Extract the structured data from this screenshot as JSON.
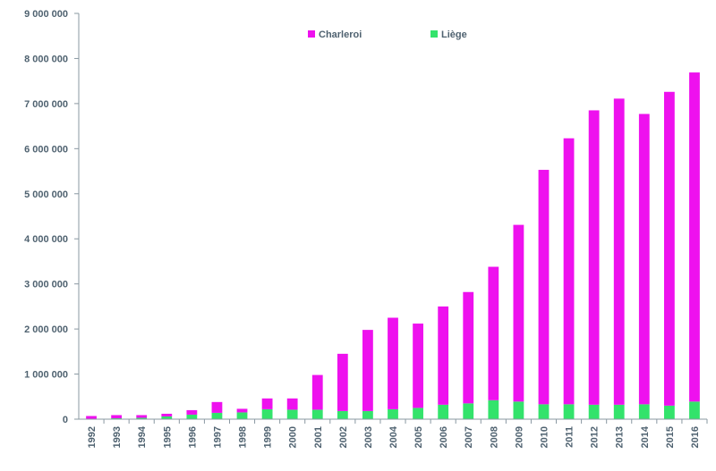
{
  "chart_data": {
    "type": "bar",
    "stacked": true,
    "title": "",
    "xlabel": "",
    "ylabel": "",
    "ylim": [
      0,
      9000000
    ],
    "yticks": [
      0,
      1000000,
      2000000,
      3000000,
      4000000,
      5000000,
      6000000,
      7000000,
      8000000,
      9000000
    ],
    "ytick_labels": [
      "0",
      "1 000 000",
      "2 000 000",
      "3 000 000",
      "4 000 000",
      "5 000 000",
      "6 000 000",
      "7 000 000",
      "8 000 000",
      "9 000 000"
    ],
    "grid": false,
    "legend_position": "top",
    "categories": [
      "1992",
      "1993",
      "1994",
      "1995",
      "1996",
      "1997",
      "1998",
      "1999",
      "2000",
      "2001",
      "2002",
      "2003",
      "2004",
      "2005",
      "2006",
      "2007",
      "2008",
      "2009",
      "2010",
      "2011",
      "2012",
      "2013",
      "2014",
      "2015",
      "2016"
    ],
    "series": [
      {
        "name": "Liège",
        "color": "#33e36b",
        "values": [
          10000,
          20000,
          30000,
          60000,
          100000,
          140000,
          150000,
          220000,
          210000,
          210000,
          180000,
          180000,
          220000,
          250000,
          320000,
          350000,
          420000,
          390000,
          330000,
          330000,
          320000,
          320000,
          330000,
          300000,
          390000
        ]
      },
      {
        "name": "Charleroi",
        "color": "#ee11ee",
        "values": [
          60000,
          70000,
          60000,
          60000,
          100000,
          240000,
          80000,
          240000,
          250000,
          770000,
          1270000,
          1800000,
          2030000,
          1870000,
          2180000,
          2470000,
          2960000,
          3920000,
          5200000,
          5900000,
          6530000,
          6790000,
          6440000,
          6960000,
          7300000
        ]
      }
    ]
  }
}
